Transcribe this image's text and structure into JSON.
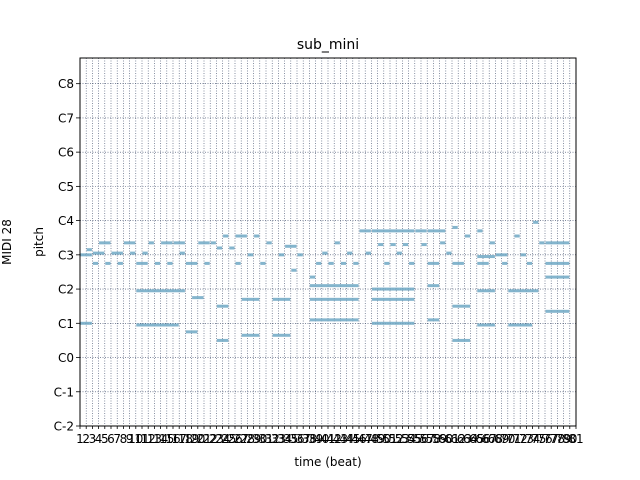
{
  "chart_data": {
    "type": "piano-roll",
    "title": "sub_mini",
    "xlabel": "time (beat)",
    "ylabel": "pitch",
    "side_label": "MIDI 28",
    "x_range": [
      1,
      81
    ],
    "y_range": [
      -2,
      8.75
    ],
    "grid": true,
    "y_ticks": [
      {
        "label": "C-2",
        "octave": -2
      },
      {
        "label": "C-1",
        "octave": -1
      },
      {
        "label": "C0",
        "octave": 0
      },
      {
        "label": "C1",
        "octave": 1
      },
      {
        "label": "C2",
        "octave": 2
      },
      {
        "label": "C3",
        "octave": 3
      },
      {
        "label": "C4",
        "octave": 4
      },
      {
        "label": "C5",
        "octave": 5
      },
      {
        "label": "C6",
        "octave": 6
      },
      {
        "label": "C7",
        "octave": 7
      },
      {
        "label": "C8",
        "octave": 8
      }
    ],
    "x_ticks": [
      "1",
      "2",
      "3",
      "4",
      "5",
      "6",
      "7",
      "8",
      "9",
      "10",
      "11",
      "12",
      "13",
      "14",
      "15",
      "16",
      "17",
      "18",
      "19",
      "20",
      "21",
      "22",
      "23",
      "24",
      "25",
      "26",
      "27",
      "28",
      "29",
      "30",
      "31",
      "32",
      "33",
      "34",
      "35",
      "36",
      "37",
      "38",
      "39",
      "40",
      "41",
      "42",
      "43",
      "44",
      "45",
      "46",
      "47",
      "48",
      "49",
      "50",
      "51",
      "52",
      "53",
      "54",
      "55",
      "56",
      "57",
      "58",
      "59",
      "60",
      "61",
      "62",
      "63",
      "64",
      "65",
      "66",
      "67",
      "68",
      "69",
      "70",
      "71",
      "72",
      "73",
      "74",
      "75",
      "76",
      "77",
      "78",
      "79",
      "80",
      "81"
    ],
    "note_color": "#6fa8c4",
    "notes": [
      {
        "start": 1,
        "end": 3,
        "octave": 1.0
      },
      {
        "start": 1,
        "end": 3,
        "octave": 3.0
      },
      {
        "start": 2,
        "end": 3,
        "octave": 3.15
      },
      {
        "start": 3,
        "end": 4,
        "octave": 2.75
      },
      {
        "start": 3,
        "end": 5,
        "octave": 3.05
      },
      {
        "start": 4,
        "end": 6,
        "octave": 3.35
      },
      {
        "start": 5,
        "end": 6,
        "octave": 2.75
      },
      {
        "start": 6,
        "end": 8,
        "octave": 3.05
      },
      {
        "start": 7,
        "end": 8,
        "octave": 2.75
      },
      {
        "start": 8,
        "end": 10,
        "octave": 3.35
      },
      {
        "start": 9,
        "end": 10,
        "octave": 3.05
      },
      {
        "start": 10,
        "end": 18,
        "octave": 1.95
      },
      {
        "start": 10,
        "end": 17,
        "octave": 0.95
      },
      {
        "start": 10,
        "end": 12,
        "octave": 2.75
      },
      {
        "start": 11,
        "end": 12,
        "octave": 3.05
      },
      {
        "start": 12,
        "end": 13,
        "octave": 3.35
      },
      {
        "start": 13,
        "end": 14,
        "octave": 2.75
      },
      {
        "start": 14,
        "end": 16,
        "octave": 3.35
      },
      {
        "start": 15,
        "end": 16,
        "octave": 2.75
      },
      {
        "start": 16,
        "end": 18,
        "octave": 3.35
      },
      {
        "start": 17,
        "end": 18,
        "octave": 3.05
      },
      {
        "start": 18,
        "end": 20,
        "octave": 0.75
      },
      {
        "start": 18,
        "end": 20,
        "octave": 2.75
      },
      {
        "start": 19,
        "end": 21,
        "octave": 1.75
      },
      {
        "start": 20,
        "end": 22,
        "octave": 3.35
      },
      {
        "start": 21,
        "end": 22,
        "octave": 2.75
      },
      {
        "start": 22,
        "end": 23,
        "octave": 3.35
      },
      {
        "start": 23,
        "end": 25,
        "octave": 0.5
      },
      {
        "start": 23,
        "end": 25,
        "octave": 1.5
      },
      {
        "start": 23,
        "end": 24,
        "octave": 3.2
      },
      {
        "start": 24,
        "end": 25,
        "octave": 3.55
      },
      {
        "start": 25,
        "end": 26,
        "octave": 3.2
      },
      {
        "start": 26,
        "end": 28,
        "octave": 3.55
      },
      {
        "start": 26,
        "end": 27,
        "octave": 2.75
      },
      {
        "start": 27,
        "end": 30,
        "octave": 1.7
      },
      {
        "start": 27,
        "end": 30,
        "octave": 0.65
      },
      {
        "start": 28,
        "end": 29,
        "octave": 3.0
      },
      {
        "start": 29,
        "end": 30,
        "octave": 3.55
      },
      {
        "start": 30,
        "end": 31,
        "octave": 2.75
      },
      {
        "start": 31,
        "end": 32,
        "octave": 3.35
      },
      {
        "start": 32,
        "end": 35,
        "octave": 1.7
      },
      {
        "start": 32,
        "end": 35,
        "octave": 0.65
      },
      {
        "start": 33,
        "end": 34,
        "octave": 3.0
      },
      {
        "start": 34,
        "end": 36,
        "octave": 3.25
      },
      {
        "start": 35,
        "end": 36,
        "octave": 2.55
      },
      {
        "start": 36,
        "end": 37,
        "octave": 3.0
      },
      {
        "start": 38,
        "end": 39,
        "octave": 2.35
      },
      {
        "start": 38,
        "end": 46,
        "octave": 2.1
      },
      {
        "start": 38,
        "end": 46,
        "octave": 1.7
      },
      {
        "start": 38,
        "end": 46,
        "octave": 1.1
      },
      {
        "start": 39,
        "end": 40,
        "octave": 2.75
      },
      {
        "start": 40,
        "end": 41,
        "octave": 3.05
      },
      {
        "start": 41,
        "end": 42,
        "octave": 2.75
      },
      {
        "start": 42,
        "end": 43,
        "octave": 3.35
      },
      {
        "start": 43,
        "end": 44,
        "octave": 2.75
      },
      {
        "start": 44,
        "end": 45,
        "octave": 3.05
      },
      {
        "start": 45,
        "end": 46,
        "octave": 2.75
      },
      {
        "start": 46,
        "end": 48,
        "octave": 3.7
      },
      {
        "start": 47,
        "end": 48,
        "octave": 3.05
      },
      {
        "start": 48,
        "end": 55,
        "octave": 2.0
      },
      {
        "start": 48,
        "end": 55,
        "octave": 1.7
      },
      {
        "start": 48,
        "end": 55,
        "octave": 1.0
      },
      {
        "start": 48,
        "end": 55,
        "octave": 3.7
      },
      {
        "start": 49,
        "end": 50,
        "octave": 3.3
      },
      {
        "start": 50,
        "end": 51,
        "octave": 2.75
      },
      {
        "start": 51,
        "end": 52,
        "octave": 3.3
      },
      {
        "start": 52,
        "end": 53,
        "octave": 3.05
      },
      {
        "start": 53,
        "end": 54,
        "octave": 3.3
      },
      {
        "start": 54,
        "end": 55,
        "octave": 2.75
      },
      {
        "start": 55,
        "end": 57,
        "octave": 3.7
      },
      {
        "start": 56,
        "end": 57,
        "octave": 3.3
      },
      {
        "start": 57,
        "end": 60,
        "octave": 3.7
      },
      {
        "start": 57,
        "end": 59,
        "octave": 2.75
      },
      {
        "start": 57,
        "end": 59,
        "octave": 2.1
      },
      {
        "start": 57,
        "end": 59,
        "octave": 1.1
      },
      {
        "start": 59,
        "end": 60,
        "octave": 3.35
      },
      {
        "start": 60,
        "end": 61,
        "octave": 3.05
      },
      {
        "start": 61,
        "end": 62,
        "octave": 3.8
      },
      {
        "start": 61,
        "end": 63,
        "octave": 2.75
      },
      {
        "start": 61,
        "end": 64,
        "octave": 1.5
      },
      {
        "start": 61,
        "end": 64,
        "octave": 0.5
      },
      {
        "start": 63,
        "end": 64,
        "octave": 3.55
      },
      {
        "start": 65,
        "end": 66,
        "octave": 3.7
      },
      {
        "start": 65,
        "end": 68,
        "octave": 2.95
      },
      {
        "start": 65,
        "end": 67,
        "octave": 2.75
      },
      {
        "start": 65,
        "end": 68,
        "octave": 1.95
      },
      {
        "start": 65,
        "end": 68,
        "octave": 0.95
      },
      {
        "start": 67,
        "end": 68,
        "octave": 3.35
      },
      {
        "start": 68,
        "end": 70,
        "octave": 3.0
      },
      {
        "start": 69,
        "end": 70,
        "octave": 2.75
      },
      {
        "start": 70,
        "end": 75,
        "octave": 1.95
      },
      {
        "start": 70,
        "end": 74,
        "octave": 0.95
      },
      {
        "start": 71,
        "end": 72,
        "octave": 3.55
      },
      {
        "start": 72,
        "end": 73,
        "octave": 3.0
      },
      {
        "start": 73,
        "end": 74,
        "octave": 2.75
      },
      {
        "start": 74,
        "end": 75,
        "octave": 3.95
      },
      {
        "start": 75,
        "end": 76,
        "octave": 3.35
      },
      {
        "start": 76,
        "end": 80,
        "octave": 3.35
      },
      {
        "start": 76,
        "end": 80,
        "octave": 2.75
      },
      {
        "start": 76,
        "end": 80,
        "octave": 2.35
      },
      {
        "start": 76,
        "end": 80,
        "octave": 1.35
      }
    ]
  }
}
